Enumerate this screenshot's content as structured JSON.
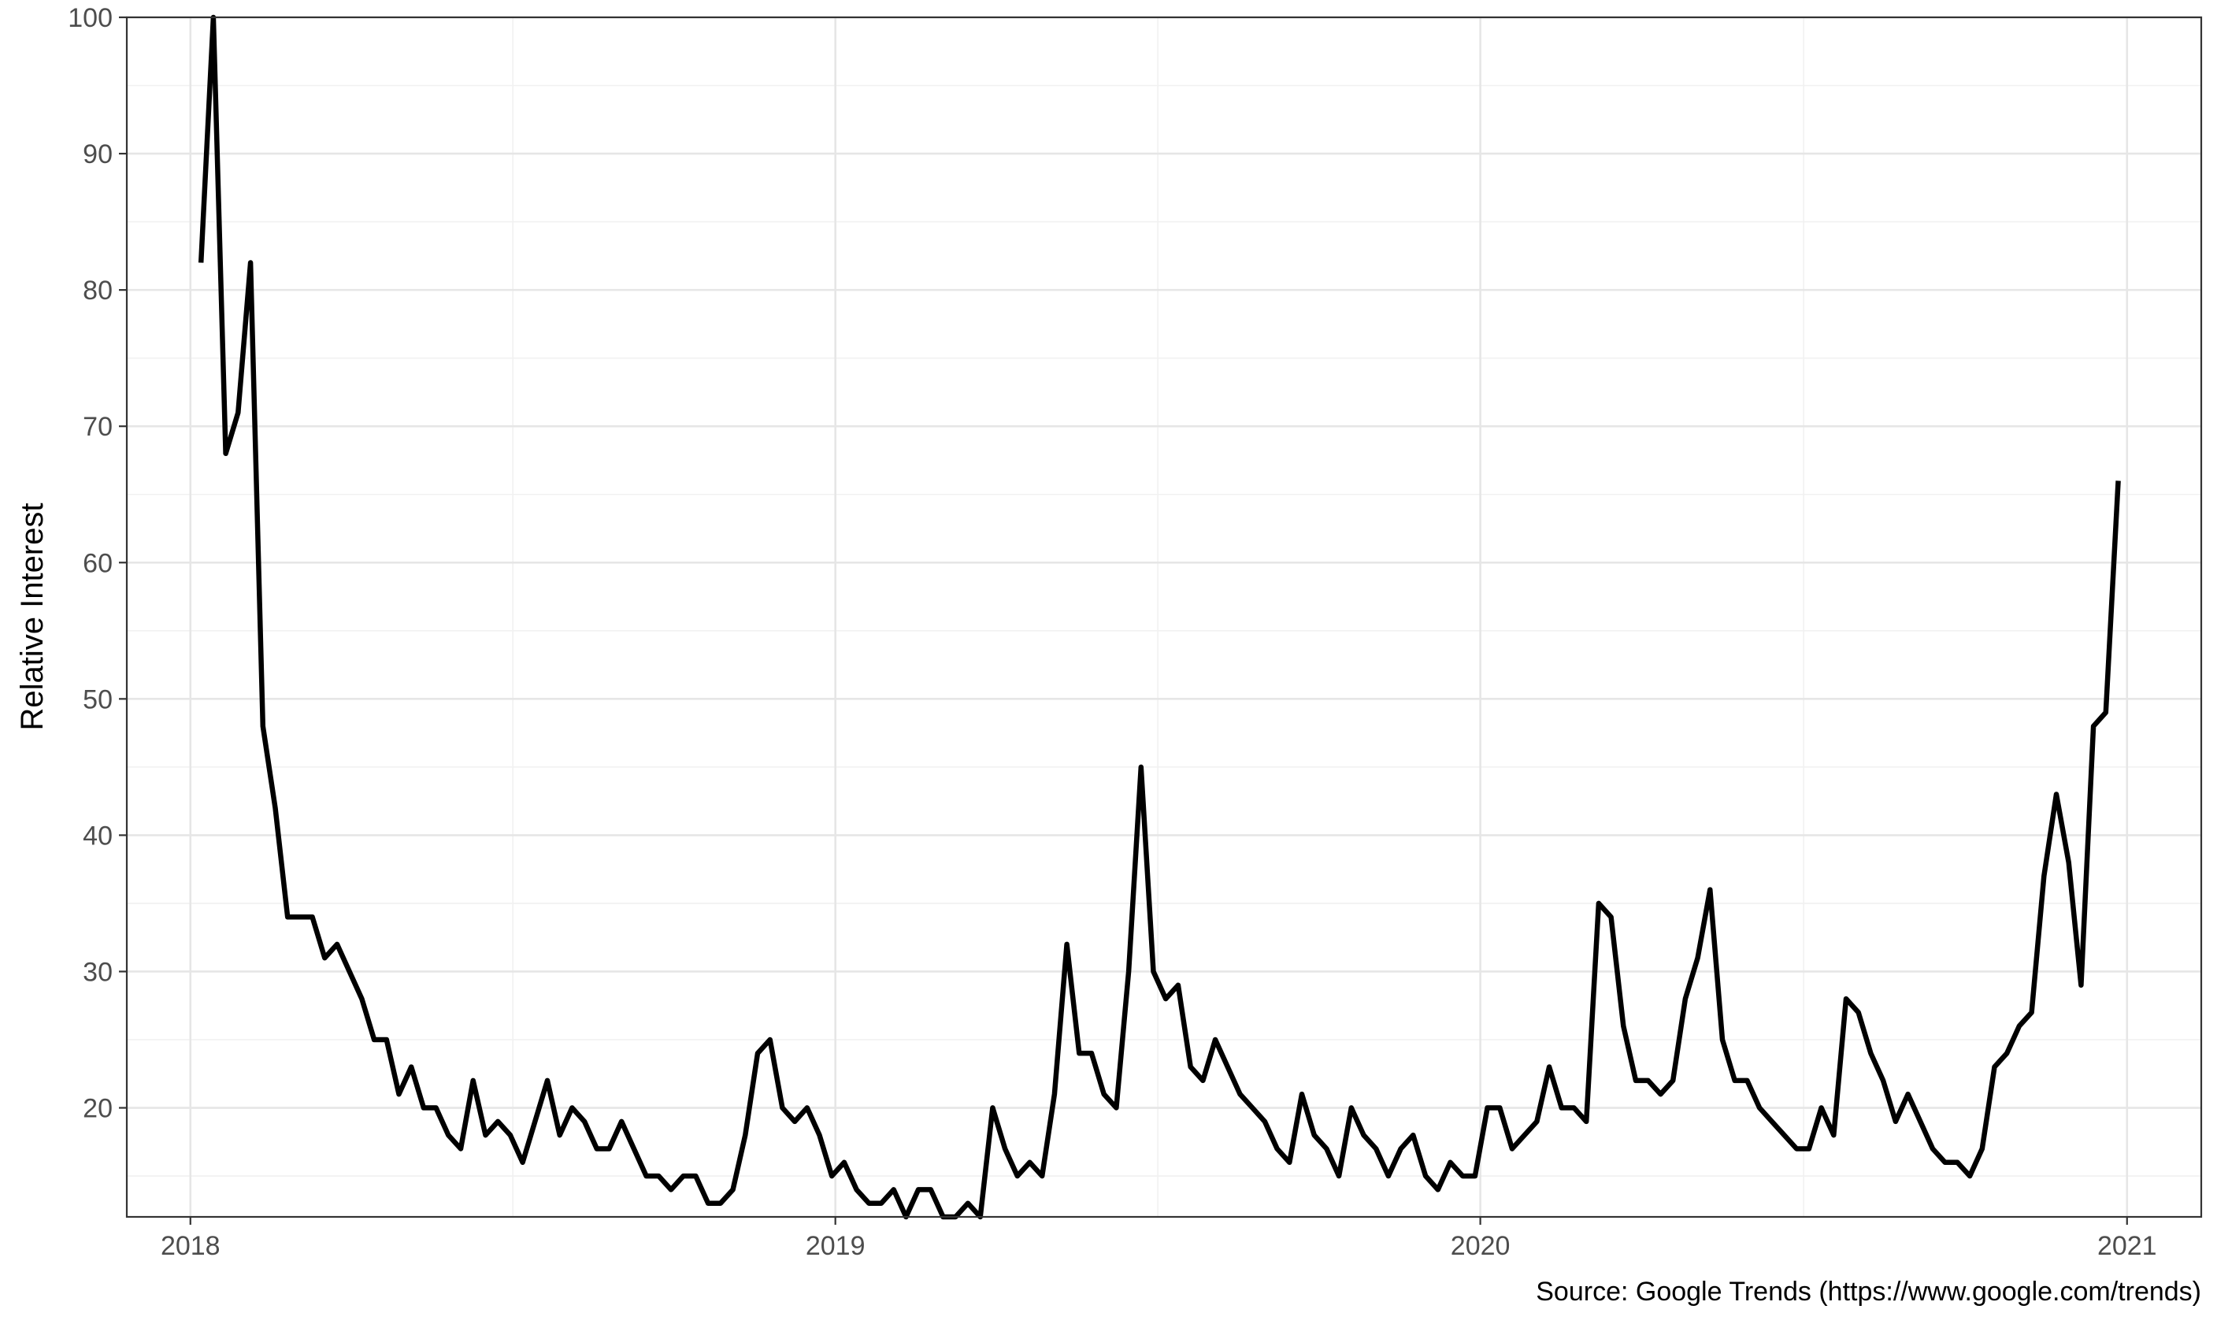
{
  "chart_data": {
    "type": "line",
    "title": "",
    "xlabel": "",
    "ylabel": "Relative Interest",
    "caption": "Source: Google Trends (https://www.google.com/trends)",
    "x_tick_labels": [
      "2018",
      "2019",
      "2020",
      "2021"
    ],
    "y_tick_labels": [
      "20",
      "30",
      "40",
      "50",
      "60",
      "70",
      "80",
      "90",
      "100"
    ],
    "ylim": [
      12,
      100
    ],
    "xlim": [
      "2017-11-26",
      "2021-02-12"
    ],
    "grid": true,
    "legend": "none",
    "line_color": "#000000",
    "series": [
      {
        "x": [
          "2018-01-07",
          "2018-01-14",
          "2018-01-21",
          "2018-01-28",
          "2018-02-04",
          "2018-02-11",
          "2018-02-18",
          "2018-02-25",
          "2018-03-04",
          "2018-03-11",
          "2018-03-18",
          "2018-03-25",
          "2018-04-01",
          "2018-04-08",
          "2018-04-15",
          "2018-04-22",
          "2018-04-29",
          "2018-05-06",
          "2018-05-13",
          "2018-05-20",
          "2018-05-27",
          "2018-06-03",
          "2018-06-10",
          "2018-06-17",
          "2018-06-24",
          "2018-07-01",
          "2018-07-08",
          "2018-07-15",
          "2018-07-22",
          "2018-07-29",
          "2018-08-05",
          "2018-08-12",
          "2018-08-19",
          "2018-08-26",
          "2018-09-02",
          "2018-09-09",
          "2018-09-16",
          "2018-09-23",
          "2018-09-30",
          "2018-10-07",
          "2018-10-14",
          "2018-10-21",
          "2018-10-28",
          "2018-11-04",
          "2018-11-11",
          "2018-11-18",
          "2018-11-25",
          "2018-12-02",
          "2018-12-09",
          "2018-12-16",
          "2018-12-23",
          "2018-12-30",
          "2019-01-06",
          "2019-01-13",
          "2019-01-20",
          "2019-01-27",
          "2019-02-03",
          "2019-02-10",
          "2019-02-17",
          "2019-02-24",
          "2019-03-03",
          "2019-03-10",
          "2019-03-17",
          "2019-03-24",
          "2019-03-31",
          "2019-04-07",
          "2019-04-14",
          "2019-04-21",
          "2019-04-28",
          "2019-05-05",
          "2019-05-12",
          "2019-05-19",
          "2019-05-26",
          "2019-06-02",
          "2019-06-09",
          "2019-06-16",
          "2019-06-23",
          "2019-06-30",
          "2019-07-07",
          "2019-07-14",
          "2019-07-21",
          "2019-07-28",
          "2019-08-04",
          "2019-08-11",
          "2019-08-18",
          "2019-08-25",
          "2019-09-01",
          "2019-09-08",
          "2019-09-15",
          "2019-09-22",
          "2019-09-29",
          "2019-10-06",
          "2019-10-13",
          "2019-10-20",
          "2019-10-27",
          "2019-11-03",
          "2019-11-10",
          "2019-11-17",
          "2019-11-24",
          "2019-12-01",
          "2019-12-08",
          "2019-12-15",
          "2019-12-22",
          "2019-12-29",
          "2020-01-05",
          "2020-01-12",
          "2020-01-19",
          "2020-01-26",
          "2020-02-02",
          "2020-02-09",
          "2020-02-16",
          "2020-02-23",
          "2020-03-01",
          "2020-03-08",
          "2020-03-15",
          "2020-03-22",
          "2020-03-29",
          "2020-04-05",
          "2020-04-12",
          "2020-04-19",
          "2020-04-26",
          "2020-05-03",
          "2020-05-10",
          "2020-05-17",
          "2020-05-24",
          "2020-05-31",
          "2020-06-07",
          "2020-06-14",
          "2020-06-21",
          "2020-06-28",
          "2020-07-05",
          "2020-07-12",
          "2020-07-19",
          "2020-07-26",
          "2020-08-02",
          "2020-08-09",
          "2020-08-16",
          "2020-08-23",
          "2020-08-30",
          "2020-09-06",
          "2020-09-13",
          "2020-09-20",
          "2020-09-27",
          "2020-10-04",
          "2020-10-11",
          "2020-10-18",
          "2020-10-25",
          "2020-11-01",
          "2020-11-08",
          "2020-11-15",
          "2020-11-22",
          "2020-11-29",
          "2020-12-06",
          "2020-12-13",
          "2020-12-20",
          "2020-12-27"
        ],
        "values": [
          82,
          100,
          68,
          71,
          82,
          48,
          42,
          34,
          34,
          34,
          31,
          32,
          30,
          28,
          25,
          25,
          21,
          23,
          20,
          20,
          18,
          17,
          22,
          18,
          19,
          18,
          16,
          19,
          22,
          18,
          20,
          19,
          17,
          17,
          19,
          17,
          15,
          15,
          14,
          15,
          15,
          13,
          13,
          14,
          18,
          24,
          25,
          20,
          19,
          20,
          18,
          15,
          16,
          14,
          13,
          13,
          14,
          12,
          14,
          14,
          12,
          12,
          13,
          12,
          20,
          17,
          15,
          16,
          15,
          21,
          32,
          24,
          24,
          21,
          20,
          30,
          45,
          30,
          28,
          29,
          23,
          22,
          25,
          23,
          21,
          20,
          19,
          17,
          16,
          21,
          18,
          17,
          15,
          20,
          18,
          17,
          15,
          17,
          18,
          15,
          14,
          16,
          15,
          15,
          20,
          20,
          17,
          18,
          19,
          23,
          20,
          20,
          19,
          35,
          34,
          26,
          22,
          22,
          21,
          22,
          28,
          31,
          36,
          25,
          22,
          22,
          20,
          19,
          18,
          17,
          17,
          20,
          18,
          28,
          27,
          24,
          22,
          19,
          21,
          19,
          17,
          16,
          16,
          15,
          17,
          23,
          24,
          26,
          27,
          37,
          43,
          38,
          29,
          48,
          49,
          66
        ]
      }
    ]
  }
}
